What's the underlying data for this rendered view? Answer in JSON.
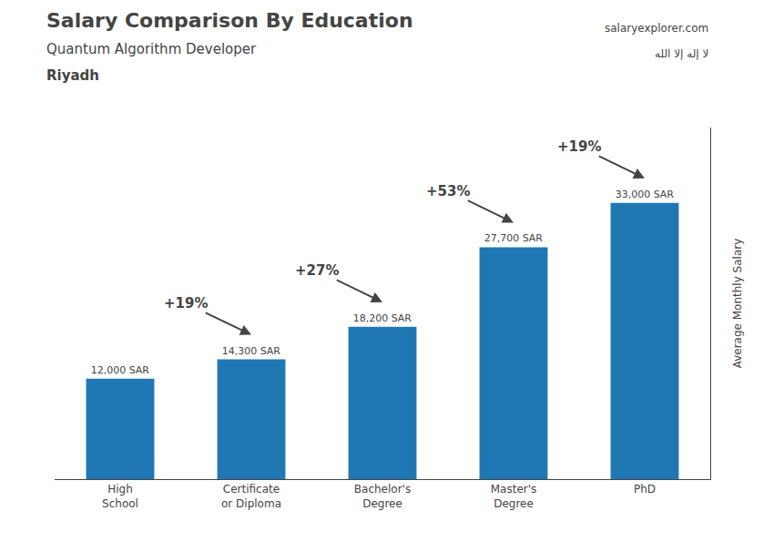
{
  "chart_data": {
    "type": "bar",
    "title": "Salary Comparison By Education",
    "subtitle": [
      "Quantum Algorithm Developer",
      "Riyadh"
    ],
    "ylabel": "Average Monthly Salary",
    "categories": [
      "High\nSchool",
      "Certificate\nor Diploma",
      "Bachelor's\nDegree",
      "Master's\nDegree",
      "PhD"
    ],
    "values": [
      12000,
      14300,
      18200,
      27700,
      33000
    ],
    "value_labels": [
      "12,000 SAR",
      "14,300 SAR",
      "18,200 SAR",
      "27,700 SAR",
      "33,000 SAR"
    ],
    "data_labels": true,
    "ylim": [
      0,
      42000
    ],
    "grid": false,
    "tick_labels": "x",
    "annotations": [
      {
        "text": "+19%",
        "from": "High\nSchool",
        "to": "Certificate\nor Diploma"
      },
      {
        "text": "+27%",
        "from": "Certificate\nor Diploma",
        "to": "Bachelor's\nDegree"
      },
      {
        "text": "+53%",
        "from": "Bachelor's\nDegree",
        "to": "Master's\nDegree"
      },
      {
        "text": "+19%",
        "from": "Master's\nDegree",
        "to": "PhD"
      },
      {
        "text": "salaryexplorer.com"
      },
      {
        "text": "لا إله إلا الله"
      }
    ]
  }
}
